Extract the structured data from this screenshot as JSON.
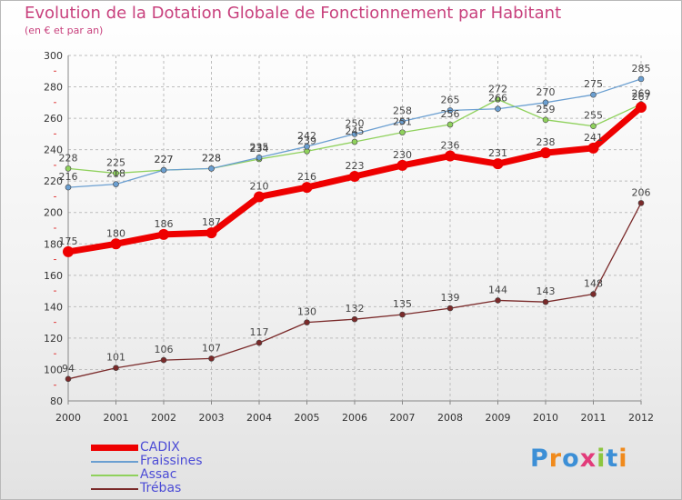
{
  "header": {
    "title": "Evolution de la Dotation Globale de Fonctionnement par Habitant",
    "subtitle": "(en € et par an)"
  },
  "logo": {
    "text": "Proxiti",
    "letter_colors": [
      "#3c8fd6",
      "#f08a1c",
      "#3c8fd6",
      "#e23b7a",
      "#8cc63f",
      "#3c8fd6",
      "#f08a1c"
    ]
  },
  "chart_data": {
    "type": "line",
    "x": [
      "2000",
      "2001",
      "2002",
      "2003",
      "2004",
      "2005",
      "2006",
      "2007",
      "2008",
      "2009",
      "2010",
      "2011",
      "2012"
    ],
    "ylim": [
      80,
      300
    ],
    "yticks": [
      80,
      100,
      120,
      140,
      160,
      180,
      200,
      220,
      240,
      260,
      280,
      300
    ],
    "grid": true,
    "legend_position": "bottom-left",
    "series": [
      {
        "name": "Trébas",
        "color": "#7a2a2a",
        "values": [
          94,
          101,
          106,
          107,
          117,
          130,
          132,
          135,
          139,
          144,
          143,
          148,
          206
        ]
      },
      {
        "name": "Assac",
        "color": "#8fd15c",
        "values": [
          228,
          225,
          227,
          228,
          234,
          239,
          245,
          251,
          256,
          272,
          259,
          255,
          269
        ]
      },
      {
        "name": "Fraissines",
        "color": "#6b9fd1",
        "values": [
          216,
          218,
          227,
          228,
          235,
          242,
          250,
          258,
          265,
          266,
          270,
          275,
          285
        ]
      },
      {
        "name": "CADIX",
        "color": "#ee0000",
        "values": [
          175,
          180,
          186,
          187,
          210,
          216,
          223,
          230,
          236,
          231,
          238,
          241,
          267
        ]
      }
    ]
  }
}
